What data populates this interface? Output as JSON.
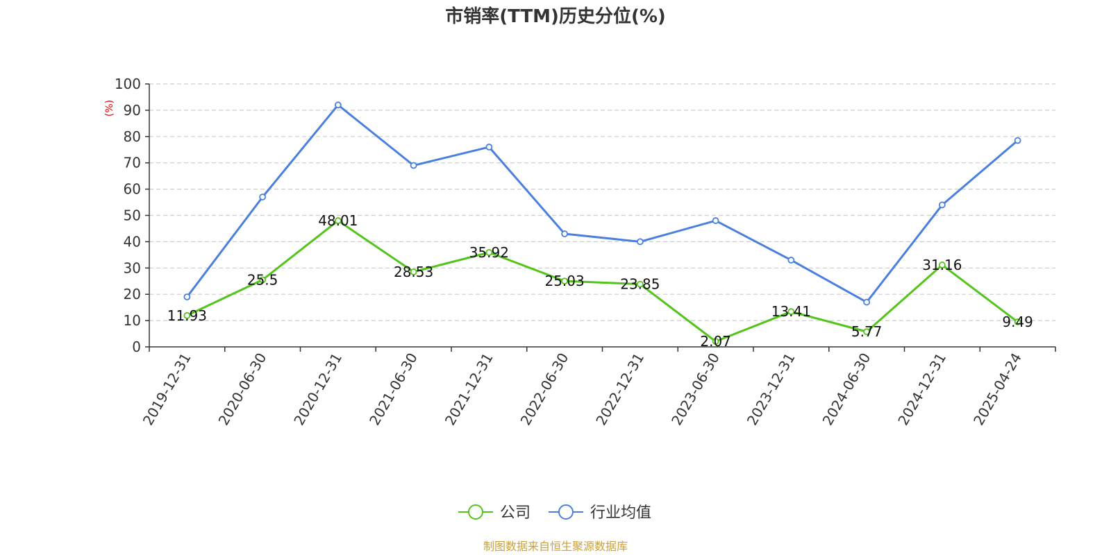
{
  "chart_data": {
    "type": "line",
    "title": "市销率(TTM)历史分位(%)",
    "ylabel": "(%)",
    "ylim": [
      0,
      100
    ],
    "yticks": [
      0,
      10,
      20,
      30,
      40,
      50,
      60,
      70,
      80,
      90,
      100
    ],
    "grid": true,
    "legend_position": "bottom",
    "categories": [
      "2019-12-31",
      "2020-06-30",
      "2020-12-31",
      "2021-06-30",
      "2021-12-31",
      "2022-06-30",
      "2022-12-31",
      "2023-06-30",
      "2023-12-31",
      "2024-06-30",
      "2024-12-31",
      "2025-04-24"
    ],
    "series": [
      {
        "name": "公司",
        "color": "#52c41a",
        "show_labels": true,
        "values": [
          11.93,
          25.5,
          48.01,
          28.53,
          35.92,
          25.03,
          23.85,
          2.07,
          13.41,
          5.77,
          31.16,
          9.49
        ]
      },
      {
        "name": "行业均值",
        "color": "#4a7fe0",
        "show_labels": false,
        "values": [
          19,
          57,
          92,
          69,
          76,
          43,
          40,
          48,
          33,
          17,
          54,
          78.5
        ]
      }
    ]
  },
  "source_text": "制图数据来自恒生聚源数据库",
  "colors": {
    "ylabel": "#e60000",
    "source": "#c9a13c",
    "axis": "#333333",
    "grid": "#cccccc"
  }
}
